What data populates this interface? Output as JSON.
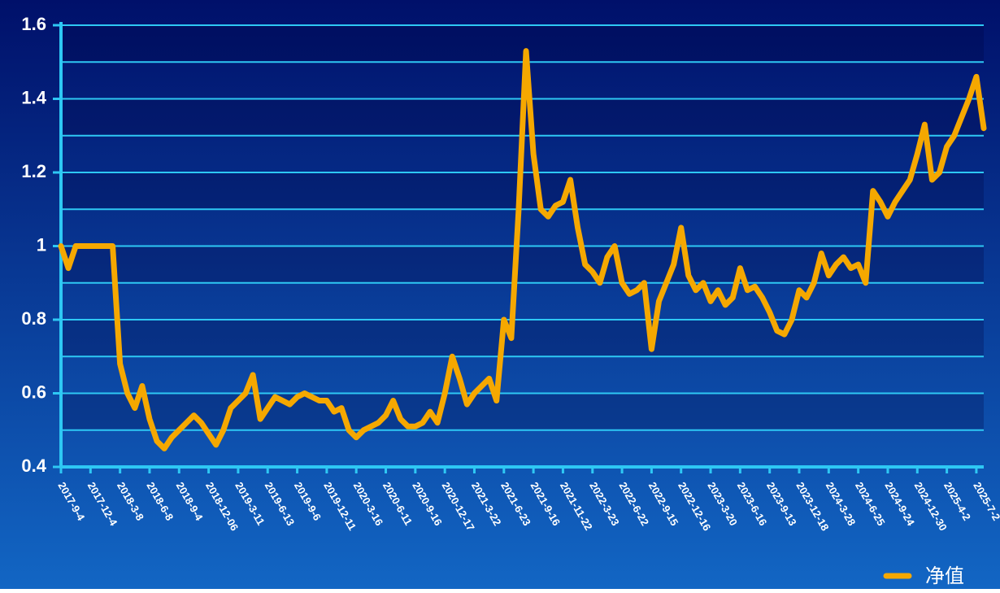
{
  "chart_data": {
    "type": "line",
    "categories": [
      "2017-9-4",
      null,
      null,
      null,
      "2017-12-4",
      null,
      null,
      null,
      "2018-3-8",
      null,
      null,
      null,
      "2018-6-8",
      null,
      null,
      null,
      "2018-9-4",
      null,
      null,
      null,
      "2018-12-06",
      null,
      null,
      null,
      "2019-3-11",
      null,
      null,
      null,
      "2019-6-13",
      null,
      null,
      null,
      "2019-9-6",
      null,
      null,
      null,
      "2019-12-11",
      null,
      null,
      null,
      "2020-3-16",
      null,
      null,
      null,
      "2020-6-11",
      null,
      null,
      null,
      "2020-9-16",
      null,
      null,
      null,
      "2020-12-17",
      null,
      null,
      null,
      "2021-3-22",
      null,
      null,
      null,
      "2021-6-23",
      null,
      null,
      null,
      "2021-9-16",
      null,
      null,
      null,
      "2021-11-22",
      null,
      null,
      null,
      "2022-3-23",
      null,
      null,
      null,
      "2022-6-22",
      null,
      null,
      null,
      "2022-9-15",
      null,
      null,
      null,
      "2022-12-16",
      null,
      null,
      null,
      "2023-3-20",
      null,
      null,
      null,
      "2023-6-16",
      null,
      null,
      null,
      "2023-9-13",
      null,
      null,
      null,
      "2023-12-18",
      null,
      null,
      null,
      "2024-3-28",
      null,
      null,
      null,
      "2024-6-25",
      null,
      null,
      null,
      "2024-9-24",
      null,
      null,
      null,
      "2024-12-30",
      null,
      null,
      null,
      "2025-4-2",
      null,
      null,
      null,
      "2025-7-2",
      null
    ],
    "series": [
      {
        "name": "净值",
        "color": "#f5a800",
        "values": [
          1.0,
          0.94,
          1.0,
          1.0,
          1.0,
          1.0,
          1.0,
          1.0,
          0.68,
          0.6,
          0.56,
          0.62,
          0.53,
          0.47,
          0.45,
          0.48,
          0.5,
          0.52,
          0.54,
          0.52,
          0.49,
          0.46,
          0.5,
          0.56,
          0.58,
          0.6,
          0.65,
          0.53,
          0.56,
          0.59,
          0.58,
          0.57,
          0.59,
          0.6,
          0.59,
          0.58,
          0.58,
          0.55,
          0.56,
          0.5,
          0.48,
          0.5,
          0.51,
          0.52,
          0.54,
          0.58,
          0.53,
          0.51,
          0.51,
          0.52,
          0.55,
          0.52,
          0.6,
          0.7,
          0.64,
          0.57,
          0.6,
          0.62,
          0.64,
          0.58,
          0.8,
          0.75,
          1.1,
          1.53,
          1.25,
          1.1,
          1.08,
          1.11,
          1.12,
          1.18,
          1.05,
          0.95,
          0.93,
          0.9,
          0.97,
          1.0,
          0.9,
          0.87,
          0.88,
          0.9,
          0.72,
          0.85,
          0.9,
          0.95,
          1.05,
          0.92,
          0.88,
          0.9,
          0.85,
          0.88,
          0.84,
          0.86,
          0.94,
          0.88,
          0.89,
          0.86,
          0.82,
          0.77,
          0.76,
          0.8,
          0.88,
          0.86,
          0.9,
          0.98,
          0.92,
          0.95,
          0.97,
          0.94,
          0.95,
          0.9,
          1.15,
          1.12,
          1.08,
          1.12,
          1.15,
          1.18,
          1.25,
          1.33,
          1.18,
          1.2,
          1.27,
          1.3,
          1.35,
          1.4,
          1.46,
          1.32
        ]
      }
    ],
    "ylim": [
      0.4,
      1.6
    ],
    "yticks": [
      0.4,
      0.6,
      0.8,
      1,
      1.2,
      1.4,
      1.6
    ],
    "grid": true,
    "legend": "bottom-right"
  }
}
